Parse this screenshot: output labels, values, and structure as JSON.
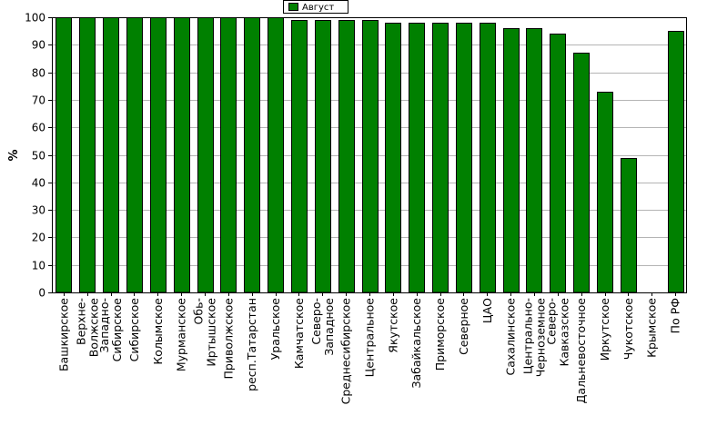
{
  "chart_data": {
    "type": "bar",
    "title": "",
    "xlabel": "",
    "ylabel": "%",
    "ylim": [
      0,
      100
    ],
    "yticks": [
      0,
      10,
      20,
      30,
      40,
      50,
      60,
      70,
      80,
      90,
      100
    ],
    "grid": true,
    "legend_position": "top-center",
    "series": [
      {
        "name": "Август",
        "color": "#008000",
        "values": [
          100,
          100,
          100,
          100,
          100,
          100,
          100,
          100,
          100,
          100,
          99,
          99,
          99,
          99,
          98,
          98,
          98,
          98,
          98,
          96,
          96,
          94,
          87,
          73,
          49,
          0,
          95
        ]
      }
    ],
    "categories": [
      "Башкирское",
      "Верхне-Волжское",
      "Западно-Сибирское",
      "Сибирское",
      "Колымское",
      "Мурманское",
      "Обь-Иртышское",
      "Приволжское",
      "респ.Татарстан",
      "Уральское",
      "Камчатское",
      "Северо-Западное",
      "Среднесибирское",
      "Центральное",
      "Якутское",
      "Забайкальское",
      "Приморское",
      "Северное",
      "ЦАО",
      "Сахалинское",
      "Центрально-Черноземное",
      "Северо-Кавказское",
      "Дальневосточное",
      "Иркутское",
      "Чукотское",
      "Крымское",
      "По РФ"
    ],
    "category_display_lines": [
      [
        "Башкирское"
      ],
      [
        "Верхне-",
        "Волжское"
      ],
      [
        "Западно-",
        "Сибирское"
      ],
      [
        "Сибирское"
      ],
      [
        "Колымское"
      ],
      [
        "Мурманское"
      ],
      [
        "Обь-",
        "Иртышское"
      ],
      [
        "Приволжское"
      ],
      [
        "респ.Татарстан"
      ],
      [
        "Уральское"
      ],
      [
        "Камчатское"
      ],
      [
        "Северо-",
        "Западное"
      ],
      [
        "Среднесибирское"
      ],
      [
        "Центральное"
      ],
      [
        "Якутское"
      ],
      [
        "Забайкальское"
      ],
      [
        "Приморское"
      ],
      [
        "Северное"
      ],
      [
        "ЦАО"
      ],
      [
        "Сахалинское"
      ],
      [
        "Центрально-",
        "Черноземное"
      ],
      [
        "Северо-",
        "Кавказское"
      ],
      [
        "Дальневосточное"
      ],
      [
        "Иркутское"
      ],
      [
        "Чукотское"
      ],
      [
        "Крымское"
      ],
      [
        "По РФ"
      ]
    ]
  }
}
